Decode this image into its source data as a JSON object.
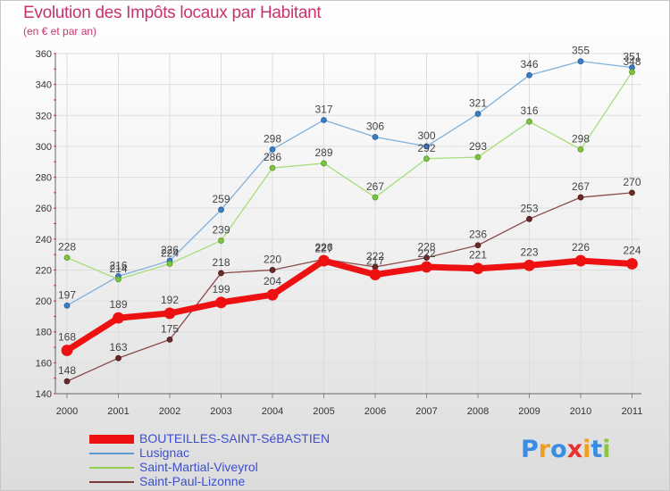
{
  "title": "Evolution des Impôts locaux par Habitant",
  "subtitle": "(en € et par an)",
  "logo": {
    "letters": [
      "P",
      "r",
      "o",
      "x",
      "i",
      "t",
      "i"
    ],
    "colors": [
      "#3a8de0",
      "#f0a020",
      "#3a8de0",
      "#e83030",
      "#f0a020",
      "#3a8de0",
      "#8cc63f"
    ]
  },
  "chart_data": {
    "type": "line",
    "title": "Evolution des Impôts locaux par Habitant",
    "subtitle": "(en € et par an)",
    "xlabel": "",
    "ylabel": "",
    "categories": [
      "2000",
      "2001",
      "2002",
      "2003",
      "2004",
      "2005",
      "2006",
      "2007",
      "2008",
      "2009",
      "2010",
      "2011"
    ],
    "ylim": [
      140,
      360
    ],
    "yticks": [
      "140",
      "160",
      "180",
      "200",
      "220",
      "240",
      "260",
      "280",
      "300",
      "320",
      "340",
      "360"
    ],
    "grid": true,
    "legend_position": "bottom-left",
    "series": [
      {
        "name": "BOUTEILLES-SAINT-SéBASTIEN",
        "color": "#ee1111",
        "values": [
          168,
          189,
          192,
          199,
          204,
          226,
          217,
          222,
          221,
          223,
          226,
          224
        ],
        "labels": [
          "168",
          "189",
          "192",
          "199",
          "204",
          "226",
          "217",
          "222",
          "221",
          "223",
          "226",
          "224"
        ]
      },
      {
        "name": "Lusignac",
        "color": "#5b9bd5",
        "values": [
          197,
          216,
          226,
          259,
          298,
          317,
          306,
          300,
          321,
          346,
          355,
          351
        ],
        "labels": [
          "197",
          "216",
          "226",
          "259",
          "298",
          "317",
          "306",
          "300",
          "321",
          "346",
          "355",
          "351"
        ]
      },
      {
        "name": "Saint-Martial-Viveyrol",
        "color": "#92d050",
        "values": [
          228,
          214,
          224,
          239,
          286,
          289,
          267,
          292,
          293,
          316,
          298,
          348
        ],
        "labels": [
          "228",
          "214",
          "224",
          "239",
          "286",
          "289",
          "267",
          "292",
          "293",
          "316",
          "298",
          "348"
        ]
      },
      {
        "name": "Saint-Paul-Lizonne",
        "color": "#7a3a3a",
        "values": [
          148,
          163,
          175,
          218,
          220,
          227,
          222,
          228,
          236,
          253,
          267,
          270
        ],
        "labels": [
          "148",
          "163",
          "175",
          "218",
          "220",
          "227",
          "222",
          "228",
          "236",
          "253",
          "267",
          "270"
        ]
      }
    ]
  }
}
